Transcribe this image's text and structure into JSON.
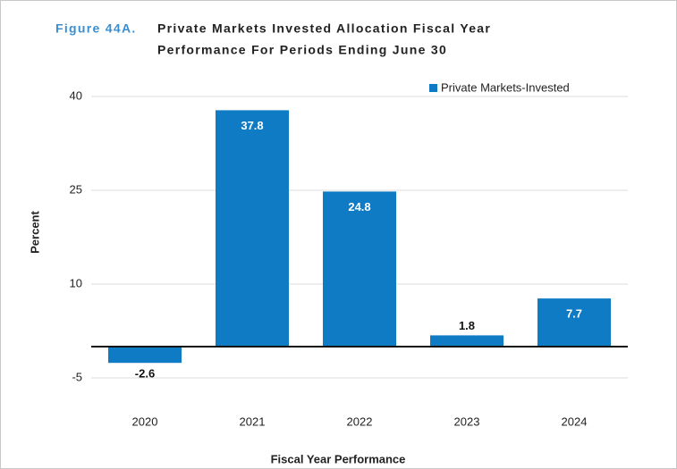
{
  "chart_data": {
    "type": "bar",
    "title": {
      "figure": "Figure 44A.",
      "lines": [
        "Private Markets Invested Allocation Fiscal Year",
        "Performance For Periods Ending June 30"
      ]
    },
    "x_label": "Fiscal Year Performance",
    "y_label": "Percent",
    "categories": [
      "2020",
      "2021",
      "2022",
      "2023",
      "2024"
    ],
    "series": [
      {
        "name": "Private Markets-Invested",
        "color": "#0e7bc4",
        "values": [
          -2.6,
          37.8,
          24.8,
          1.8,
          7.7
        ]
      }
    ],
    "ylim": [
      -10,
      40
    ],
    "yticks": [
      -5,
      10,
      25,
      40
    ],
    "grid": true,
    "legend": "top-right"
  }
}
